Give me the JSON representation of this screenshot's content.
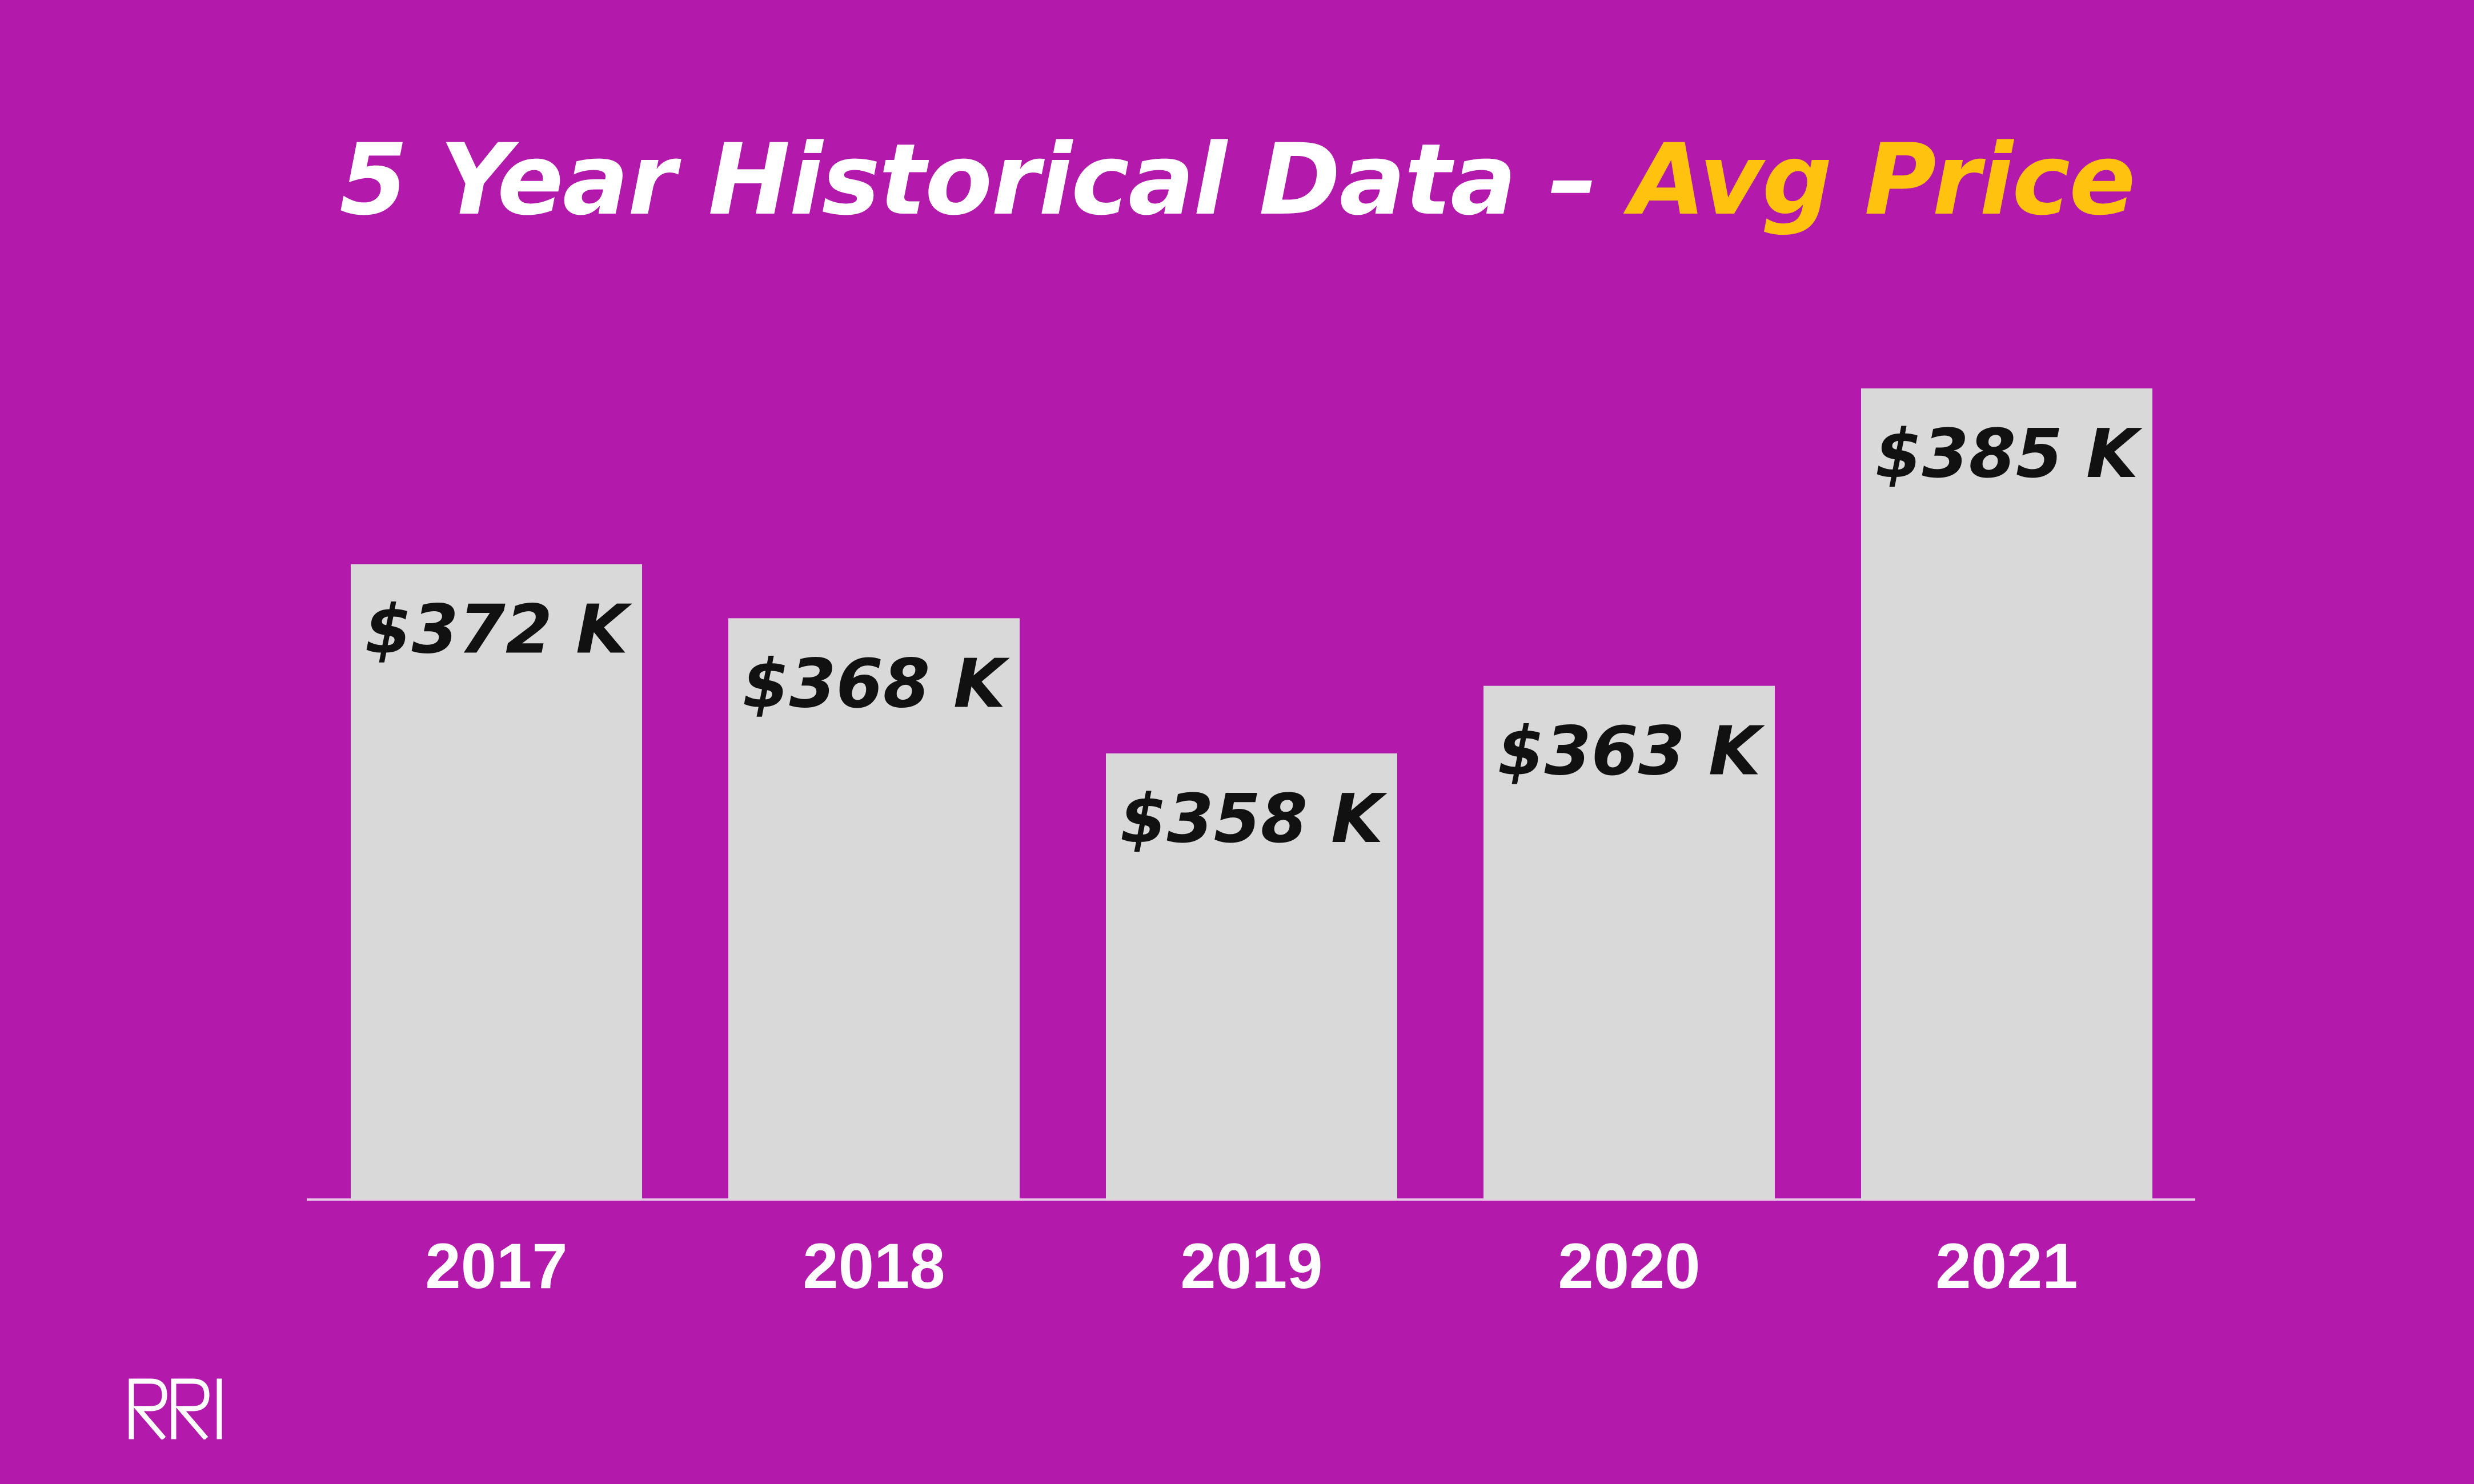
{
  "title": {
    "main": "5 Year Historical Data – ",
    "accent": "Avg Price"
  },
  "colors": {
    "background": "#b31aab",
    "bar": "#d9d9d9",
    "title_main": "#ffffff",
    "title_accent": "#ffc20e",
    "bar_label": "#111111",
    "axis_label": "#ffffff",
    "baseline": "#e8c6e6"
  },
  "logo": {
    "icon": "rri-logo-icon",
    "text": "RRI"
  },
  "chart_data": {
    "type": "bar",
    "categories": [
      "2017",
      "2018",
      "2019",
      "2020",
      "2021"
    ],
    "values": [
      372,
      368,
      358,
      363,
      385
    ],
    "data_labels": [
      "$372 K",
      "$368 K",
      "$358 K",
      "$363 K",
      "$385 K"
    ],
    "title": "5 Year Historical Data – Avg Price",
    "xlabel": "",
    "ylabel": "",
    "ylim": [
      325,
      390
    ],
    "grid": false,
    "legend": "none"
  }
}
